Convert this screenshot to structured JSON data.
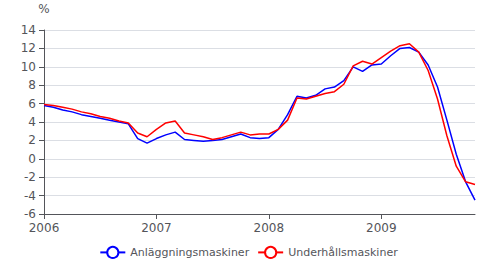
{
  "chart_data": {
    "type": "line",
    "x": [
      2006.0,
      2006.0833333333333,
      2006.1666666666667,
      2006.25,
      2006.3333333333333,
      2006.4166666666667,
      2006.5,
      2006.5833333333333,
      2006.6666666666667,
      2006.75,
      2006.8333333333333,
      2006.9166666666667,
      2007.0,
      2007.0833333333333,
      2007.1666666666667,
      2007.25,
      2007.3333333333333,
      2007.4166666666667,
      2007.5,
      2007.5833333333333,
      2007.6666666666667,
      2007.75,
      2007.8333333333333,
      2007.9166666666667,
      2008.0,
      2008.0833333333333,
      2008.1666666666667,
      2008.25,
      2008.3333333333333,
      2008.4166666666667,
      2008.5,
      2008.5833333333333,
      2008.6666666666667,
      2008.75,
      2008.8333333333333,
      2008.9166666666667,
      2009.0,
      2009.0833333333333,
      2009.1666666666667,
      2009.25,
      2009.3333333333333,
      2009.4166666666667,
      2009.5,
      2009.5833333333333,
      2009.6666666666667,
      2009.75,
      2009.8333333333333
    ],
    "series": [
      {
        "name": "Anläggningsmaskiner",
        "color": "#0000ff",
        "values": [
          5.8,
          5.6,
          5.3,
          5.1,
          4.8,
          4.6,
          4.4,
          4.2,
          4.0,
          3.8,
          2.2,
          1.7,
          2.2,
          2.6,
          2.9,
          2.1,
          2.0,
          1.9,
          2.0,
          2.1,
          2.4,
          2.7,
          2.3,
          2.2,
          2.3,
          3.2,
          4.8,
          6.8,
          6.6,
          6.9,
          7.6,
          7.8,
          8.5,
          10.0,
          9.5,
          10.2,
          10.3,
          11.2,
          12.0,
          12.1,
          11.6,
          10.2,
          7.8,
          4.2,
          0.5,
          -2.5,
          -4.5
        ]
      },
      {
        "name": "Underhållsmaskiner",
        "color": "#ff0000",
        "values": [
          5.9,
          5.8,
          5.6,
          5.4,
          5.1,
          4.9,
          4.6,
          4.4,
          4.1,
          3.9,
          2.8,
          2.4,
          3.2,
          3.9,
          4.1,
          2.8,
          2.6,
          2.4,
          2.1,
          2.3,
          2.6,
          2.9,
          2.6,
          2.7,
          2.7,
          3.2,
          4.2,
          6.6,
          6.5,
          6.8,
          7.1,
          7.3,
          8.1,
          10.1,
          10.6,
          10.3,
          11.0,
          11.7,
          12.3,
          12.5,
          11.6,
          9.6,
          6.5,
          2.5,
          -0.8,
          -2.5,
          -2.8
        ]
      }
    ],
    "ylabel": "%",
    "xlim": [
      2006.0,
      2009.8333333333333
    ],
    "xticks": [
      2006,
      2007,
      2008,
      2009
    ],
    "ylim": [
      -6,
      14
    ],
    "yticks": [
      -6,
      -4,
      -2,
      0,
      2,
      4,
      6,
      8,
      10,
      12,
      14
    ],
    "grid": true,
    "legend": "bottom"
  }
}
